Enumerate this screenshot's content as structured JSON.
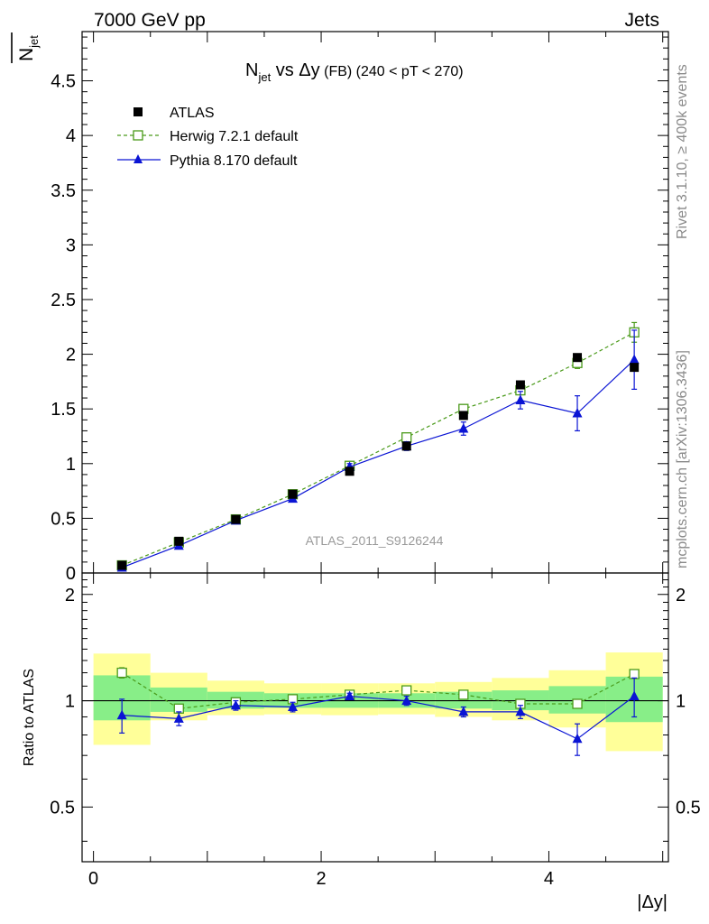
{
  "header": {
    "energy": "7000 GeV pp",
    "process": "Jets"
  },
  "side_labels": {
    "rivet": "Rivet 3.1.10, ≥ 400k events",
    "mcplots": "mcplots.cern.ch [arXiv:1306.3436]"
  },
  "chart_data": [
    {
      "type": "scatter",
      "title": "N_jet vs Δy (FB) (240 < pT < 270)",
      "title_parts": {
        "main": "N",
        "sub": "jet",
        "vs": " vs Δy",
        "fb": " (FB)",
        "range": " (240 < pT < 270)"
      },
      "watermark": "ATLAS_2011_S9126244",
      "ylabel": "N_jet",
      "ylabel_parts": {
        "main": "N",
        "sub": "jet"
      },
      "xlabel": "",
      "xlim": [
        -0.1,
        5.05
      ],
      "ylim": [
        0,
        4.95
      ],
      "yticks": [
        0,
        0.5,
        1,
        1.5,
        2,
        2.5,
        3,
        3.5,
        4,
        4.5
      ],
      "ytick_labels": [
        "0",
        "0.5",
        "1",
        "1.5",
        "2",
        "2.5",
        "3",
        "3.5",
        "4",
        "4.5"
      ],
      "legend_position": "top-left",
      "x": [
        0.25,
        0.75,
        1.25,
        1.75,
        2.25,
        2.75,
        3.25,
        3.75,
        4.25,
        4.75
      ],
      "series": [
        {
          "name": "ATLAS",
          "marker": "square-filled",
          "color": "#000000",
          "values": [
            0.07,
            0.29,
            0.49,
            0.72,
            0.93,
            1.16,
            1.44,
            1.72,
            1.97,
            1.88
          ]
        },
        {
          "name": "Herwig 7.2.1 default",
          "marker": "square-open",
          "color": "#4a9a1a",
          "line": "dashed",
          "values": [
            0.07,
            0.28,
            0.49,
            0.72,
            0.98,
            1.24,
            1.5,
            1.67,
            1.92,
            2.2
          ],
          "errors": [
            0.01,
            0.01,
            0.01,
            0.01,
            0.01,
            0.02,
            0.03,
            0.04,
            0.05,
            0.09
          ]
        },
        {
          "name": "Pythia 8.170 default",
          "marker": "triangle-filled",
          "color": "#0a14d4",
          "line": "solid",
          "values": [
            0.05,
            0.25,
            0.48,
            0.68,
            0.97,
            1.16,
            1.32,
            1.58,
            1.46,
            1.95
          ],
          "errors": [
            0.01,
            0.02,
            0.02,
            0.03,
            0.03,
            0.04,
            0.06,
            0.08,
            0.16,
            0.27
          ]
        }
      ]
    },
    {
      "type": "scatter",
      "ylabel": "Ratio to ATLAS",
      "xlabel": "|Δy|",
      "xlim": [
        -0.1,
        5.05
      ],
      "ylim": [
        0.35,
        2.3
      ],
      "yscale": "log",
      "xticks": [
        0,
        2,
        4
      ],
      "xtick_labels": [
        "0",
        "2",
        "4"
      ],
      "yticks": [
        0.5,
        1,
        2
      ],
      "ytick_labels": [
        "0.5",
        "1",
        "2"
      ],
      "x": [
        0.25,
        0.75,
        1.25,
        1.75,
        2.25,
        2.75,
        3.25,
        3.75,
        4.25,
        4.75
      ],
      "bands": {
        "bin_edges": [
          0,
          0.5,
          1,
          1.5,
          2,
          2.5,
          3,
          3.5,
          4,
          4.5,
          5
        ],
        "inner_lo": [
          0.88,
          0.93,
          0.95,
          0.955,
          0.955,
          0.955,
          0.95,
          0.94,
          0.92,
          0.87
        ],
        "inner_hi": [
          1.18,
          1.09,
          1.06,
          1.05,
          1.05,
          1.05,
          1.06,
          1.07,
          1.1,
          1.17
        ],
        "outer_lo": [
          0.75,
          0.88,
          0.91,
          0.915,
          0.91,
          0.915,
          0.9,
          0.88,
          0.84,
          0.72
        ],
        "outer_hi": [
          1.36,
          1.2,
          1.14,
          1.12,
          1.12,
          1.12,
          1.13,
          1.16,
          1.22,
          1.37
        ],
        "inner_color": "#88ee88",
        "outer_color": "#ffff99"
      },
      "series": [
        {
          "name": "Herwig 7.2.1 default",
          "marker": "square-open",
          "color": "#4a9a1a",
          "line": "dashed",
          "values": [
            1.2,
            0.95,
            0.99,
            1.01,
            1.04,
            1.07,
            1.04,
            0.98,
            0.98,
            1.19
          ],
          "errors": [
            0.04,
            0.02,
            0.01,
            0.01,
            0.01,
            0.01,
            0.01,
            0.01,
            0.01,
            0.03
          ]
        },
        {
          "name": "Pythia 8.170 default",
          "marker": "triangle-filled",
          "color": "#0a14d4",
          "line": "solid",
          "values": [
            0.91,
            0.89,
            0.97,
            0.96,
            1.03,
            1.0,
            0.93,
            0.93,
            0.78,
            1.03
          ],
          "errors": [
            0.1,
            0.04,
            0.03,
            0.03,
            0.02,
            0.03,
            0.03,
            0.04,
            0.08,
            0.13
          ]
        }
      ]
    }
  ]
}
